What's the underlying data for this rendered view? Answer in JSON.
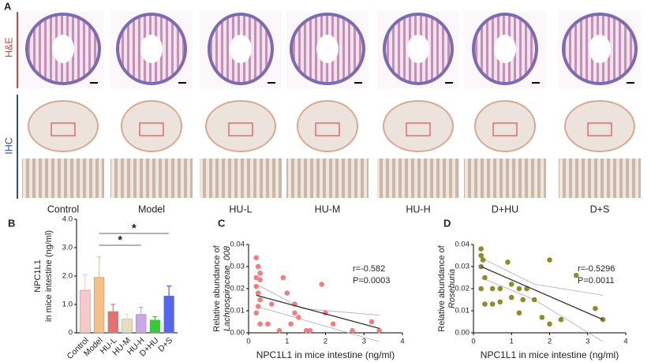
{
  "figure": {
    "panels": [
      "A",
      "B",
      "C",
      "D"
    ],
    "rows": [
      "H&E",
      "IHC"
    ],
    "groups": [
      "Control",
      "Model",
      "HU-L",
      "HU-M",
      "HU-H",
      "D+HU",
      "D+S"
    ]
  },
  "chart_data": [
    {
      "type": "bar",
      "ylabel": [
        "NPC1L1",
        "in mice intestine (ng/ml)"
      ],
      "categories": [
        "Control",
        "Model",
        "HU-L",
        "HU-M",
        "HU-H",
        "D+HU",
        "D+S"
      ],
      "values": [
        1.5,
        1.95,
        0.75,
        0.48,
        0.65,
        0.45,
        1.3
      ],
      "errors": [
        0.55,
        0.72,
        0.25,
        0.18,
        0.25,
        0.12,
        0.35
      ],
      "colors": [
        "#f7c9c9",
        "#f6bf86",
        "#e8716f",
        "#e8dcc0",
        "#cba6e8",
        "#33cc33",
        "#5566ee"
      ],
      "ylim": [
        0,
        4
      ],
      "yticks": [
        0,
        {
          "value": 1,
          "label": "1.0"
        },
        {
          "value": 2,
          "label": "2.0"
        },
        {
          "value": 3,
          "label": "3.0"
        },
        {
          "value": 4,
          "label": "4.0"
        }
      ],
      "annotations": [
        "*",
        "*"
      ]
    },
    {
      "type": "scatter",
      "xlabel": "NPC1L1 in mice intestine (ng/ml)",
      "ylabel": [
        "Relative abundance of",
        "Lachnospiraceae_008"
      ],
      "annotations": [
        "r=-0.582",
        "P=0.0003"
      ],
      "color": "#f08080",
      "x": [
        0.2,
        0.25,
        0.3,
        0.2,
        0.3,
        0.2,
        0.25,
        0.3,
        0.25,
        0.2,
        0.3,
        0.5,
        0.6,
        0.9,
        1.0,
        1.1,
        1.2,
        1.2,
        1.3,
        1.5,
        1.6,
        1.9,
        2.0,
        2.2,
        2.7,
        3.2,
        3.4,
        0.8
      ],
      "y": [
        0.034,
        0.03,
        0.027,
        0.025,
        0.024,
        0.021,
        0.018,
        0.015,
        0.012,
        0.009,
        0.004,
        0.004,
        0.013,
        0.025,
        0.018,
        0.004,
        0.009,
        0.013,
        0.007,
        0.001,
        0.001,
        0.022,
        0.009,
        0.004,
        0.001,
        0.005,
        0.001,
        0.001
      ],
      "trend": {
        "x": [
          0.2,
          3.4
        ],
        "y": [
          0.017,
          0.002
        ]
      },
      "ci_upper": {
        "x": [
          0.2,
          1.4,
          3.4
        ],
        "y": [
          0.022,
          0.011,
          0.008
        ]
      },
      "ci_lower": {
        "x": [
          0.2,
          1.4,
          3.4
        ],
        "y": [
          0.012,
          0.006,
          -0.004
        ]
      },
      "xlim": [
        0,
        4
      ],
      "xticks": [
        0,
        1,
        2,
        3,
        4
      ],
      "ylim": [
        0,
        0.04
      ],
      "yticks": [
        {
          "value": 0,
          "label": "0.00"
        },
        {
          "value": 0.01,
          "label": "0.01"
        },
        {
          "value": 0.02,
          "label": "0.02"
        },
        {
          "value": 0.03,
          "label": "0.03"
        },
        {
          "value": 0.04,
          "label": "0.04"
        }
      ]
    },
    {
      "type": "scatter",
      "xlabel": "NPC1L1 in mice intestine (ng/ml)",
      "ylabel": [
        "Relative abundance of",
        "Roseburia"
      ],
      "annotations": [
        "r=-0.5296",
        "P=0.0011"
      ],
      "color": "#8f8a2a",
      "x": [
        0.2,
        0.2,
        0.25,
        0.2,
        0.3,
        0.2,
        0.5,
        0.3,
        0.5,
        0.7,
        0.7,
        0.9,
        1.0,
        1.2,
        1.3,
        1.2,
        1.4,
        1.6,
        1.8,
        2.0,
        2.0,
        2.3,
        2.7,
        3.2,
        3.4,
        1.0
      ],
      "y": [
        0.038,
        0.035,
        0.033,
        0.03,
        0.025,
        0.02,
        0.02,
        0.013,
        0.013,
        0.014,
        0.02,
        0.032,
        0.016,
        0.009,
        0.015,
        0.02,
        0.02,
        0.015,
        0.007,
        0.004,
        0.033,
        0.006,
        0.026,
        0.011,
        0.006,
        0.022
      ],
      "trend": {
        "x": [
          0.2,
          3.4
        ],
        "y": [
          0.03,
          0.006
        ]
      },
      "ci_upper": {
        "x": [
          0.2,
          1.6,
          3.4
        ],
        "y": [
          0.034,
          0.022,
          0.017
        ]
      },
      "ci_lower": {
        "x": [
          0.2,
          1.6,
          3.4
        ],
        "y": [
          0.025,
          0.015,
          -0.004
        ]
      },
      "xlim": [
        0,
        4
      ],
      "xticks": [
        0,
        1,
        2,
        3,
        4
      ],
      "ylim": [
        0,
        0.04
      ],
      "yticks": [
        {
          "value": 0,
          "label": "0.00"
        },
        {
          "value": 0.01,
          "label": "0.01"
        },
        {
          "value": 0.02,
          "label": "0.02"
        },
        {
          "value": 0.03,
          "label": "0.03"
        },
        {
          "value": 0.04,
          "label": "0.04"
        }
      ]
    }
  ]
}
